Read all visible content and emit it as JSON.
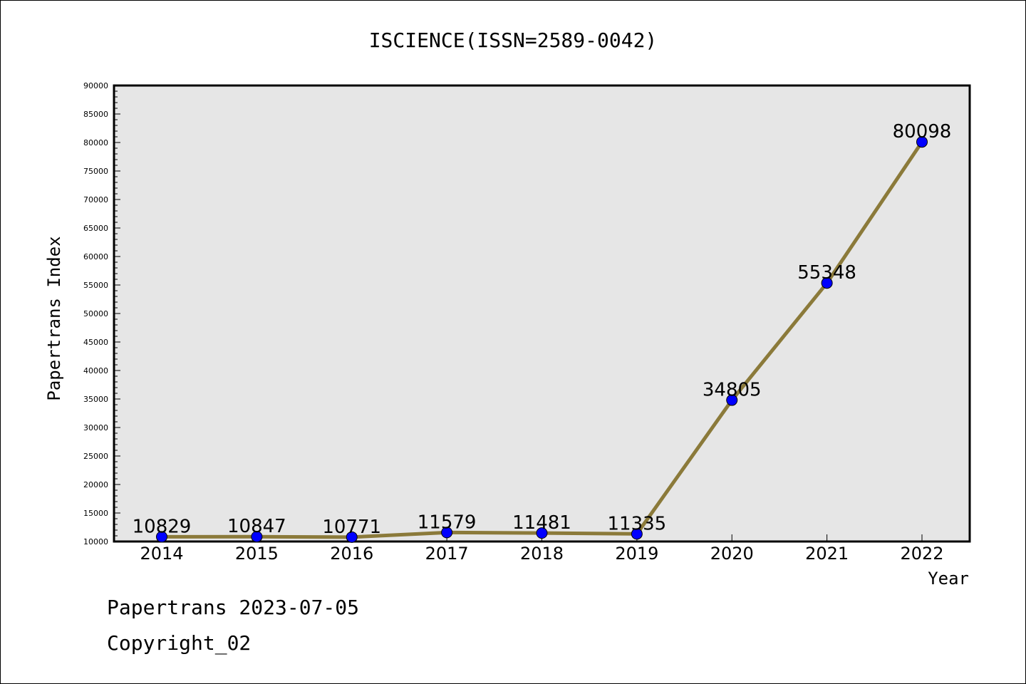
{
  "footer": {
    "date_line": "Papertrans 2023-07-05",
    "copyright_line": "Copyright_02"
  },
  "chart_data": {
    "type": "line",
    "title": "ISCIENCE(ISSN=2589-0042)",
    "xlabel": "Year",
    "ylabel": "Papertrans Index",
    "categories": [
      "2014",
      "2015",
      "2016",
      "2017",
      "2018",
      "2019",
      "2020",
      "2021",
      "2022"
    ],
    "series": [
      {
        "values": [
          10829,
          10847,
          10771,
          11579,
          11481,
          11335,
          34805,
          55348,
          80098
        ],
        "line_color": "#8b7a3a",
        "marker_color": "#0000ff"
      }
    ],
    "ylim": [
      10000,
      90000
    ],
    "y_ticks": [
      "10000",
      "15000",
      "20000",
      "25000",
      "30000",
      "35000",
      "40000",
      "45000",
      "50000",
      "55000",
      "60000",
      "65000",
      "70000",
      "75000",
      "80000",
      "85000",
      "90000"
    ],
    "plot_background": "#e6e6e6",
    "grid": false,
    "legend": "none"
  }
}
